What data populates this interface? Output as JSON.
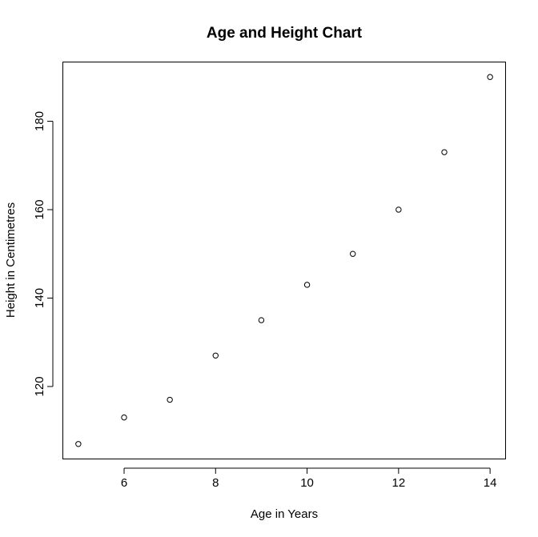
{
  "chart_data": {
    "type": "scatter",
    "title": "Age and Height Chart",
    "xlabel": "Age in Years",
    "ylabel": "Height in Centimetres",
    "x": [
      5,
      6,
      7,
      8,
      9,
      10,
      11,
      12,
      13,
      14
    ],
    "y": [
      107,
      113,
      117,
      127,
      135,
      143,
      150,
      160,
      173,
      190
    ],
    "xlim": [
      4.67,
      14.33
    ],
    "ylim": [
      103.7,
      193.3
    ],
    "x_ticks": [
      6,
      8,
      10,
      12,
      14
    ],
    "y_ticks": [
      120,
      140,
      160,
      180
    ],
    "x_tick_labels": [
      "6",
      "8",
      "10",
      "12",
      "14"
    ],
    "y_tick_labels": [
      "120",
      "140",
      "160",
      "180"
    ],
    "grid": false,
    "legend": "none",
    "marker": "open-circle",
    "colors": {
      "background": "#ffffff",
      "foreground": "#000000"
    }
  }
}
